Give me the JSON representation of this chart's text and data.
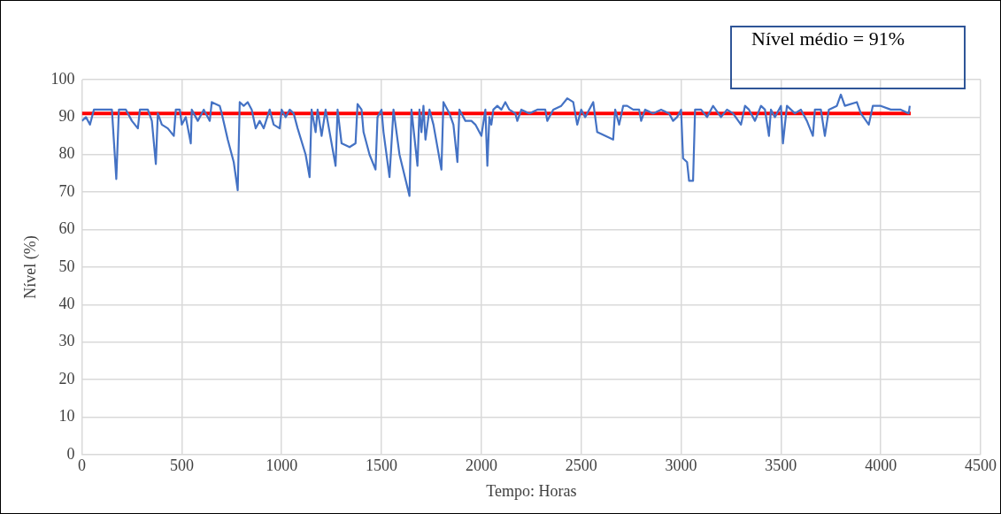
{
  "chart_data": {
    "type": "line",
    "xlabel": "Tempo: Horas",
    "ylabel": "Nível (%)",
    "xlim": [
      0,
      4500
    ],
    "xticks": [
      0,
      500,
      1000,
      1500,
      2000,
      2500,
      3000,
      3500,
      4000,
      4500
    ],
    "ylim": [
      0,
      100
    ],
    "yticks": [
      0,
      10,
      20,
      30,
      40,
      50,
      60,
      70,
      80,
      90,
      100
    ],
    "grid": true,
    "marker": "none",
    "legend": false,
    "annotations": [
      "Nível médio = 91%"
    ],
    "series": [
      {
        "color": "#4472c4",
        "x": [
          0,
          20,
          40,
          60,
          100,
          150,
          172,
          185,
          220,
          250,
          280,
          290,
          330,
          350,
          370,
          380,
          400,
          430,
          460,
          470,
          490,
          500,
          520,
          545,
          550,
          580,
          610,
          640,
          650,
          690,
          700,
          730,
          760,
          780,
          790,
          810,
          830,
          850,
          870,
          890,
          910,
          940,
          960,
          990,
          1000,
          1020,
          1040,
          1060,
          1080,
          1120,
          1140,
          1150,
          1170,
          1180,
          1200,
          1220,
          1260,
          1270,
          1280,
          1300,
          1340,
          1370,
          1380,
          1400,
          1410,
          1440,
          1470,
          1480,
          1500,
          1510,
          1540,
          1560,
          1590,
          1640,
          1650,
          1680,
          1690,
          1700,
          1710,
          1720,
          1740,
          1760,
          1800,
          1810,
          1830,
          1840,
          1860,
          1880,
          1890,
          1920,
          1950,
          1970,
          2000,
          2020,
          2030,
          2040,
          2050,
          2060,
          2080,
          2100,
          2120,
          2140,
          2170,
          2180,
          2200,
          2240,
          2280,
          2320,
          2330,
          2360,
          2400,
          2430,
          2460,
          2480,
          2500,
          2520,
          2560,
          2580,
          2620,
          2660,
          2670,
          2690,
          2710,
          2730,
          2760,
          2790,
          2800,
          2820,
          2860,
          2900,
          2940,
          2960,
          2980,
          3000,
          3010,
          3030,
          3040,
          3060,
          3070,
          3100,
          3130,
          3160,
          3200,
          3230,
          3260,
          3300,
          3320,
          3340,
          3370,
          3400,
          3420,
          3440,
          3450,
          3470,
          3500,
          3510,
          3530,
          3570,
          3600,
          3630,
          3660,
          3670,
          3700,
          3720,
          3740,
          3780,
          3800,
          3820,
          3880,
          3900,
          3940,
          3960,
          4000,
          4050,
          4100,
          4140,
          4145
        ],
        "values": [
          89,
          90,
          88,
          92,
          92,
          92,
          73.5,
          92,
          92,
          89,
          87,
          92,
          92,
          89,
          77.5,
          91,
          88,
          87,
          85,
          92,
          92,
          88,
          90,
          83,
          92,
          89,
          92,
          89,
          94,
          93,
          91,
          84,
          78,
          70.5,
          94,
          93,
          94,
          92,
          87,
          89,
          87,
          92,
          88,
          87,
          92,
          90,
          92,
          91,
          87,
          80,
          74,
          92,
          86,
          92,
          85,
          92,
          80,
          77,
          92,
          83,
          82,
          83,
          93.5,
          92,
          86,
          80,
          76,
          90,
          92,
          86,
          74,
          92,
          80,
          69,
          92,
          77,
          92,
          86,
          93,
          84,
          92,
          88,
          76,
          94,
          92,
          91,
          88,
          78,
          92,
          89,
          89,
          88,
          85,
          92,
          77,
          90,
          88,
          92,
          93,
          92,
          94,
          92,
          91,
          89,
          92,
          91,
          92,
          92,
          89,
          92,
          93,
          95,
          94,
          88,
          92,
          90,
          94,
          86,
          85,
          84,
          92,
          88,
          93,
          93,
          92,
          92,
          89,
          92,
          91,
          92,
          91,
          89,
          90,
          92,
          79,
          78,
          73,
          73,
          92,
          92,
          90,
          93,
          90,
          92,
          91,
          88,
          93,
          92,
          89,
          93,
          92,
          85,
          92,
          90,
          93,
          83,
          93,
          91,
          92,
          89,
          85,
          92,
          92,
          85,
          92,
          93,
          96,
          93,
          94,
          91,
          88,
          93,
          93,
          92,
          92,
          91,
          93
        ]
      },
      {
        "type": "line",
        "color": "#ff0000",
        "x": [
          0,
          4150
        ],
        "values": [
          91,
          91
        ]
      }
    ]
  }
}
